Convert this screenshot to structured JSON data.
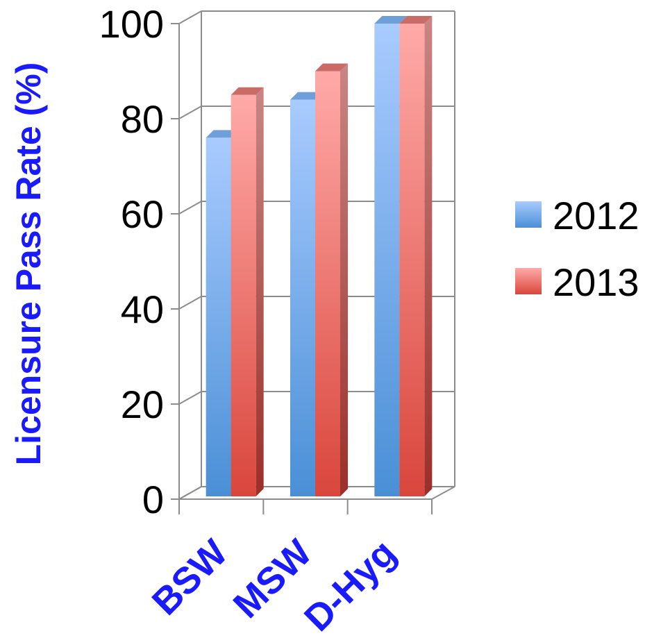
{
  "chart_data": {
    "type": "bar",
    "title": "",
    "xlabel": "",
    "ylabel": "Licensure Pass Rate (%)",
    "categories": [
      "BSW",
      "MSW",
      "D-Hyg"
    ],
    "series": [
      {
        "name": "2012",
        "values": [
          76,
          84,
          100
        ]
      },
      {
        "name": "2013",
        "values": [
          85,
          90,
          100
        ]
      }
    ],
    "ylim": [
      0,
      100
    ],
    "yticks": [
      "0",
      "20",
      "40",
      "60",
      "80",
      "100"
    ],
    "grid": true,
    "legend_position": "right",
    "style": "3d-clustered",
    "colors": {
      "series_2012": "#5a9be0",
      "series_2013": "#e06060",
      "label_blue": "#1a1aff"
    }
  }
}
